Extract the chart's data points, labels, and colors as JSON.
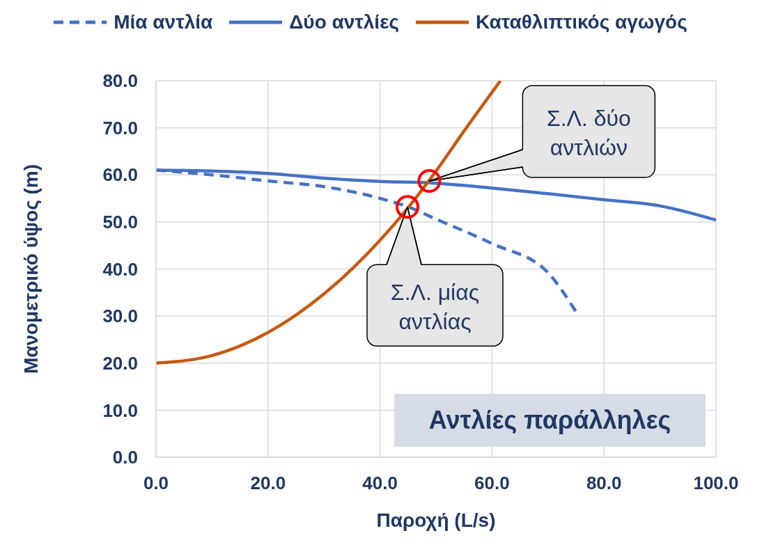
{
  "chart_data": {
    "type": "line",
    "xlabel": "Παροχή (L/s)",
    "ylabel": "Μανομετρικό ύψος (m)",
    "xlim": [
      0,
      100
    ],
    "xticks": [
      {
        "value": 0,
        "label": "0.0"
      },
      {
        "value": 20,
        "label": "20.0"
      },
      {
        "value": 40,
        "label": "40.0"
      },
      {
        "value": 60,
        "label": "60.0"
      },
      {
        "value": 80,
        "label": "80.0"
      },
      {
        "value": 100,
        "label": "100.0"
      }
    ],
    "ylim": [
      0,
      80
    ],
    "yticks": [
      {
        "value": 0,
        "label": "0.0"
      },
      {
        "value": 10,
        "label": "10.0"
      },
      {
        "value": 20,
        "label": "20.0"
      },
      {
        "value": 30,
        "label": "30.0"
      },
      {
        "value": 40,
        "label": "40.0"
      },
      {
        "value": 50,
        "label": "50.0"
      },
      {
        "value": 60,
        "label": "60.0"
      },
      {
        "value": 70,
        "label": "70.0"
      },
      {
        "value": 80,
        "label": "80.0"
      }
    ],
    "grid": true,
    "legend": "top",
    "marker": "none",
    "series": [
      {
        "name": "Μία αντλία",
        "color": "#4472c4",
        "line_style": "dashed",
        "x": [
          0,
          10,
          20,
          30,
          40,
          45,
          50,
          60,
          70,
          75
        ],
        "values": [
          61,
          60,
          58.7,
          57.5,
          55,
          53.2,
          50.6,
          45.4,
          39.2,
          30.9
        ]
      },
      {
        "name": "Δύο αντλίες",
        "color": "#4472c4",
        "line_style": "solid",
        "x": [
          0,
          10,
          20,
          30,
          40,
          48.8,
          60,
          70,
          80,
          90,
          100
        ],
        "values": [
          61,
          60.8,
          60.3,
          59.3,
          58.6,
          58.3,
          57.2,
          56,
          54.7,
          53.4,
          50.4
        ]
      },
      {
        "name": "Καταθλιπτικός αγωγός",
        "color": "#c55a11",
        "line_style": "solid",
        "x": [
          0,
          10,
          20,
          30,
          40,
          45,
          50,
          55,
          61.5
        ],
        "values": [
          20,
          21.6,
          26.5,
          34.7,
          46.1,
          53,
          60.8,
          69.3,
          80
        ]
      }
    ],
    "annotations": [
      {
        "text": "Σ.Λ. δύο αντλιών",
        "x": 48.8,
        "y": 58.7
      },
      {
        "text": "Σ.Λ. μίας αντλίας",
        "x": 44.9,
        "y": 53.2
      },
      "Αντλίες παράλληλες"
    ]
  }
}
